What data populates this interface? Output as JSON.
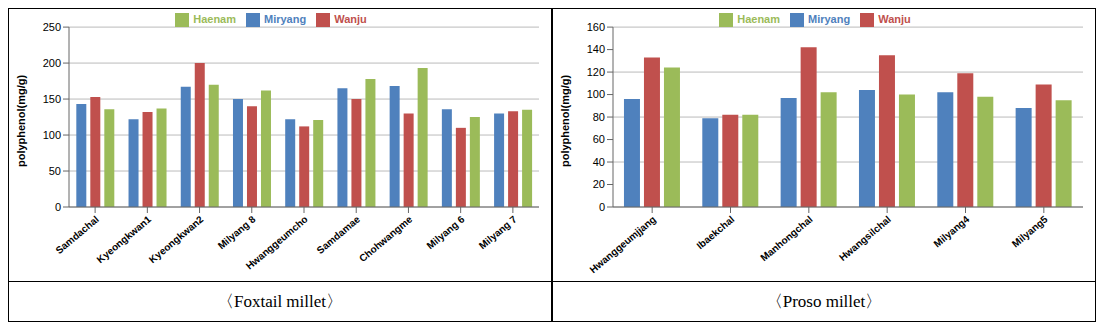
{
  "chart_data": [
    {
      "type": "bar",
      "title": "〈Foxtail millet〉",
      "y_label": "polyphenol(mg/g)",
      "categories": [
        "Samdachal",
        "Kyeongkwan1",
        "Kyeongkwan2",
        "Milyang 8",
        "Hwanggeumcho",
        "Samdamae",
        "Chohwangme",
        "Milyang 6",
        "Milyang 7"
      ],
      "series": [
        {
          "name": "Miryang",
          "color": "#4f81bd",
          "values": [
            143,
            122,
            167,
            150,
            122,
            165,
            168,
            136,
            130
          ]
        },
        {
          "name": "Wanju",
          "color": "#c0504d",
          "values": [
            153,
            132,
            200,
            140,
            112,
            150,
            130,
            110,
            133
          ]
        },
        {
          "name": "Haenam",
          "color": "#9bbb59",
          "values": [
            136,
            137,
            170,
            162,
            121,
            178,
            193,
            125,
            135
          ]
        }
      ],
      "ylim": [
        0,
        250
      ],
      "yticks": [
        0,
        50,
        100,
        150,
        200,
        250
      ],
      "grid": true,
      "legend": "top"
    },
    {
      "type": "bar",
      "title": "〈Proso millet〉",
      "y_label": "polyphenol(mg/g)",
      "categories": [
        "Hwanggeumjjang",
        "Ibaekchal",
        "Manhongchal",
        "Hwangsilchal",
        "Milyang4",
        "Milyang5"
      ],
      "series": [
        {
          "name": "Miryang",
          "color": "#4f81bd",
          "values": [
            96,
            79,
            97,
            104,
            102,
            88
          ]
        },
        {
          "name": "Wanju",
          "color": "#c0504d",
          "values": [
            133,
            82,
            142,
            135,
            119,
            109
          ]
        },
        {
          "name": "Haenam",
          "color": "#9bbb59",
          "values": [
            124,
            82,
            102,
            100,
            98,
            95
          ]
        }
      ],
      "ylim": [
        0,
        160
      ],
      "yticks": [
        0,
        20,
        40,
        60,
        80,
        100,
        120,
        140,
        160
      ],
      "grid": true,
      "legend": "top"
    }
  ]
}
